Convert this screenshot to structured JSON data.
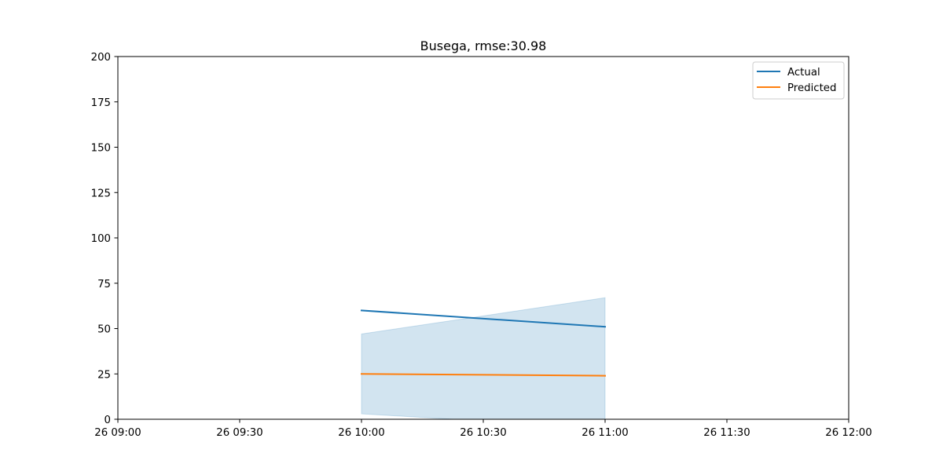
{
  "chart_data": {
    "type": "line",
    "title": "Busega, rmse:30.98",
    "xlabel": "",
    "ylabel": "",
    "xlim": [
      "26 09:00",
      "26 12:00"
    ],
    "ylim": [
      0,
      200
    ],
    "x_ticks": [
      "26 09:00",
      "26 09:30",
      "26 10:00",
      "26 10:30",
      "26 11:00",
      "26 11:30",
      "26 12:00"
    ],
    "y_ticks": [
      0,
      25,
      50,
      75,
      100,
      125,
      150,
      175,
      200
    ],
    "grid": false,
    "legend": {
      "placement": "top-right",
      "entries": [
        "Actual",
        "Predicted"
      ]
    },
    "x": [
      "26 10:00",
      "26 11:00"
    ],
    "series": [
      {
        "name": "Actual",
        "color": "#1f77b4",
        "values": [
          60,
          51
        ]
      },
      {
        "name": "Predicted",
        "color": "#ff7f0e",
        "values": [
          25,
          24
        ]
      }
    ],
    "band": {
      "color": "#1f77b4",
      "opacity": 0.2,
      "lower": [
        3,
        -5
      ],
      "upper": [
        47,
        67
      ]
    }
  }
}
